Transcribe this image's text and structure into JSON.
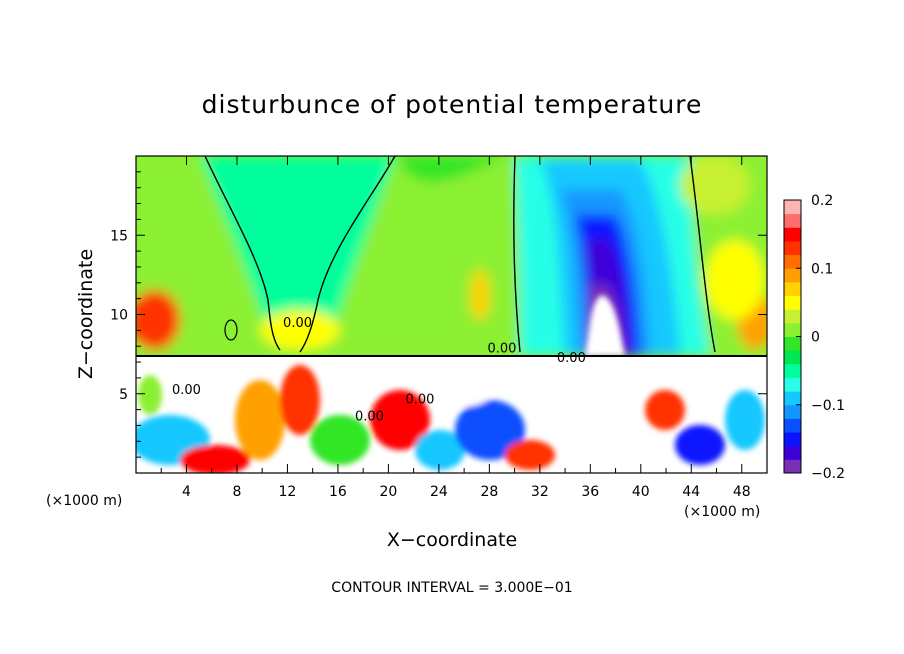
{
  "chart_data": {
    "type": "heatmap",
    "title": "disturbunce of potential temperature",
    "xlabel": "X−coordinate",
    "ylabel": "Z−coordinate",
    "x_unit_left": "(×1000 m)",
    "x_unit_right": "(×1000 m)",
    "footer": "CONTOUR INTERVAL = 3.000E−01",
    "xlim": [
      0,
      50
    ],
    "ylim": [
      0,
      20
    ],
    "x_ticks": [
      4,
      8,
      12,
      16,
      20,
      24,
      28,
      32,
      36,
      40,
      44,
      48
    ],
    "y_ticks": [
      5,
      10,
      15
    ],
    "colorbar": {
      "range": [
        -0.2,
        0.2
      ],
      "ticks": [
        {
          "value": 0.2,
          "label": "0.2"
        },
        {
          "value": 0.1,
          "label": "0.1"
        },
        {
          "value": 0,
          "label": "0"
        },
        {
          "value": -0.1,
          "label": "−0.1"
        },
        {
          "value": -0.2,
          "label": "−0.2"
        }
      ],
      "colors": [
        "#7b2fb5",
        "#3f00d8",
        "#0a14ff",
        "#0a50ff",
        "#1496ff",
        "#14c8ff",
        "#28ffe6",
        "#00ff9c",
        "#00e650",
        "#30e628",
        "#8cf032",
        "#c8f032",
        "#ffff00",
        "#ffd200",
        "#ffa000",
        "#ff6e00",
        "#ff3200",
        "#ff0000",
        "#ff6e6e",
        "#ffb4b4"
      ]
    },
    "contour_labels": [
      {
        "text": "0.00",
        "x": 12.8,
        "y": 9.2
      },
      {
        "text": "0.00",
        "x": 29.0,
        "y": 7.6
      },
      {
        "text": "0.00",
        "x": 34.5,
        "y": 7.0
      },
      {
        "text": "0.00",
        "x": 22.5,
        "y": 4.4
      },
      {
        "text": "0.00",
        "x": 18.5,
        "y": 3.3
      },
      {
        "text": "0.00",
        "x": 4.0,
        "y": 5.0
      }
    ]
  }
}
